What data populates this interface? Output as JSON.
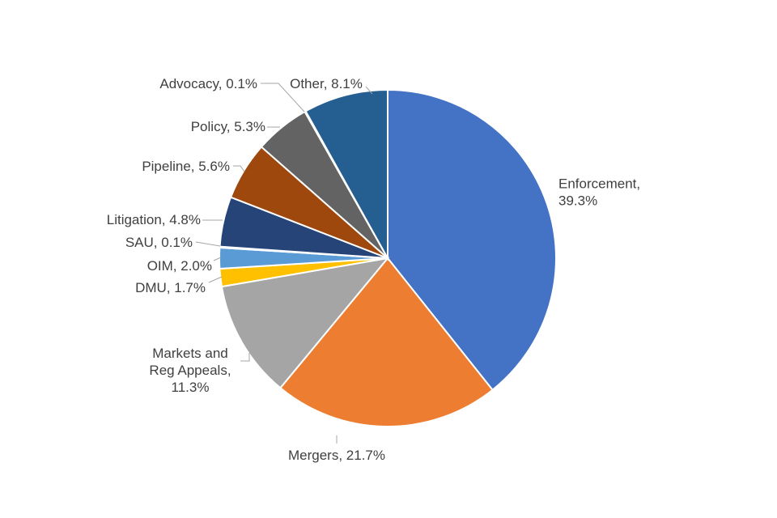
{
  "chart_data": {
    "type": "pie",
    "title": "",
    "start_angle_deg": 0,
    "direction": "clockwise",
    "slices": [
      {
        "label": "Enforcement",
        "value": 39.3,
        "value_label": "39.3%",
        "color": "#4472c4",
        "label_lines": [
          "Enforcement,",
          "39.3%"
        ]
      },
      {
        "label": "Mergers",
        "value": 21.7,
        "value_label": "21.7%",
        "color": "#ed7d31",
        "label_lines": [
          "Mergers, 21.7%"
        ]
      },
      {
        "label": "Markets and Reg Appeals",
        "value": 11.3,
        "value_label": "11.3%",
        "color": "#a5a5a5",
        "label_lines": [
          "Markets and",
          "Reg Appeals,",
          "11.3%"
        ]
      },
      {
        "label": "DMU",
        "value": 1.7,
        "value_label": "1.7%",
        "color": "#ffc000",
        "label_lines": [
          "DMU, 1.7%"
        ]
      },
      {
        "label": "OIM",
        "value": 2.0,
        "value_label": "2.0%",
        "color": "#5b9bd5",
        "label_lines": [
          "OIM, 2.0%"
        ]
      },
      {
        "label": "SAU",
        "value": 0.1,
        "value_label": "0.1%",
        "color": "#70ad47",
        "label_lines": [
          "SAU, 0.1%"
        ]
      },
      {
        "label": "Litigation",
        "value": 4.8,
        "value_label": "4.8%",
        "color": "#264478",
        "label_lines": [
          "Litigation, 4.8%"
        ]
      },
      {
        "label": "Pipeline",
        "value": 5.6,
        "value_label": "5.6%",
        "color": "#9e480e",
        "label_lines": [
          "Pipeline, 5.6%"
        ]
      },
      {
        "label": "Policy",
        "value": 5.3,
        "value_label": "5.3%",
        "color": "#636363",
        "label_lines": [
          "Policy, 5.3%"
        ]
      },
      {
        "label": "Advocacy",
        "value": 0.1,
        "value_label": "0.1%",
        "color": "#997300",
        "label_lines": [
          "Advocacy, 0.1%"
        ]
      },
      {
        "label": "Other",
        "value": 8.1,
        "value_label": "8.1%",
        "color": "#255e91",
        "label_lines": [
          "Other, 8.1%"
        ]
      }
    ]
  }
}
